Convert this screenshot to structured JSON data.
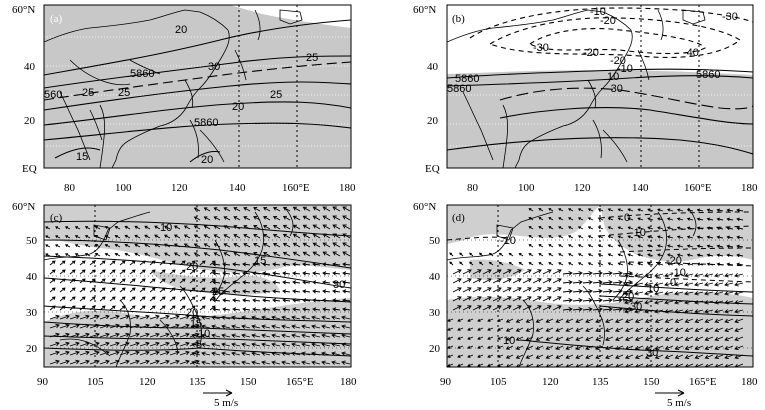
{
  "panels": [
    {
      "label": "(a)",
      "y_ticks": [
        "60°N",
        "40",
        "20",
        "EQ"
      ],
      "x_ticks": [
        "80",
        "100",
        "120",
        "140",
        "160°E",
        "180"
      ],
      "contour_labels": [
        "20",
        "30",
        "25",
        "5860",
        "25",
        "25",
        "560",
        "20",
        "25",
        "5860",
        "15",
        "20"
      ]
    },
    {
      "label": "(b)",
      "y_ticks": [
        "60°N",
        "40",
        "20",
        "EQ"
      ],
      "x_ticks": [
        "80",
        "100",
        "120",
        "140",
        "160°E",
        "180"
      ],
      "contour_labels": [
        "-10",
        "-20",
        "-30",
        "-30",
        "-20",
        "-40",
        "-20",
        "-10",
        "10",
        "5860",
        "5860",
        "5860",
        "-30"
      ]
    },
    {
      "label": "(c)",
      "y_ticks": [
        "60°N",
        "50",
        "40",
        "30",
        "20"
      ],
      "x_ticks": [
        "90",
        "105",
        "120",
        "135",
        "150",
        "165°E",
        "180"
      ],
      "contour_labels": [
        "10",
        "20",
        "15",
        "25",
        "30",
        "20",
        "15",
        "10",
        "5"
      ]
    },
    {
      "label": "(d)",
      "y_ticks": [
        "60°N",
        "50",
        "40",
        "30",
        "20"
      ],
      "x_ticks": [
        "90",
        "105",
        "120",
        "135",
        "150",
        "165°E",
        "180"
      ],
      "contour_labels": [
        "0",
        "-10",
        "-10",
        "-20",
        "-10",
        "0",
        "20",
        "10",
        "30",
        "10",
        "30"
      ]
    }
  ],
  "reference_vectors": [
    {
      "label": "5 m/s"
    },
    {
      "label": "5 m/s"
    }
  ]
}
